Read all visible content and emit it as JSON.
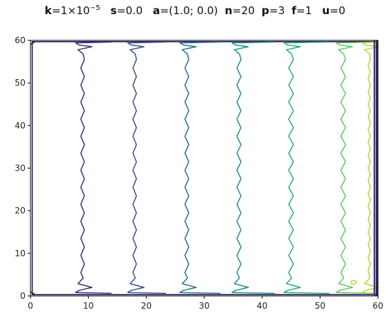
{
  "title": {
    "k_key": "k",
    "k_value": "=1×10",
    "k_exp": "−5",
    "s_key": "s",
    "s_value": "=0.0",
    "a_key": "a",
    "a_value": "=(1.0; 0.0)",
    "n_key": "n",
    "n_value": "=20",
    "p_key": "p",
    "p_value": "=3",
    "f_key": "f",
    "f_value": "=1",
    "u_key": "u",
    "u_value": "=0"
  },
  "chart_data": {
    "type": "contour",
    "xlim": [
      0,
      60
    ],
    "ylim": [
      0,
      60
    ],
    "xticks": [
      "0",
      "10",
      "20",
      "30",
      "40",
      "50",
      "60"
    ],
    "yticks": [
      "0",
      "10",
      "20",
      "30",
      "40",
      "50",
      "60"
    ],
    "grid": false,
    "levels": [
      {
        "x_center": 9,
        "color": "#472c7a",
        "zig_amp": 1.2
      },
      {
        "x_center": 18,
        "color": "#3b518b",
        "zig_amp": 1.2
      },
      {
        "x_center": 27,
        "color": "#2c718e",
        "zig_amp": 1.3
      },
      {
        "x_center": 36,
        "color": "#21908d",
        "zig_amp": 1.4
      },
      {
        "x_center": 45,
        "color": "#27ad81",
        "zig_amp": 1.6
      },
      {
        "x_center": 54,
        "color": "#5cc863",
        "zig_amp": 1.6
      },
      {
        "x_center": 58.5,
        "color": "#aadc32",
        "zig_amp": 0.8
      }
    ],
    "outer_contour_color": "#2a1b5f"
  }
}
